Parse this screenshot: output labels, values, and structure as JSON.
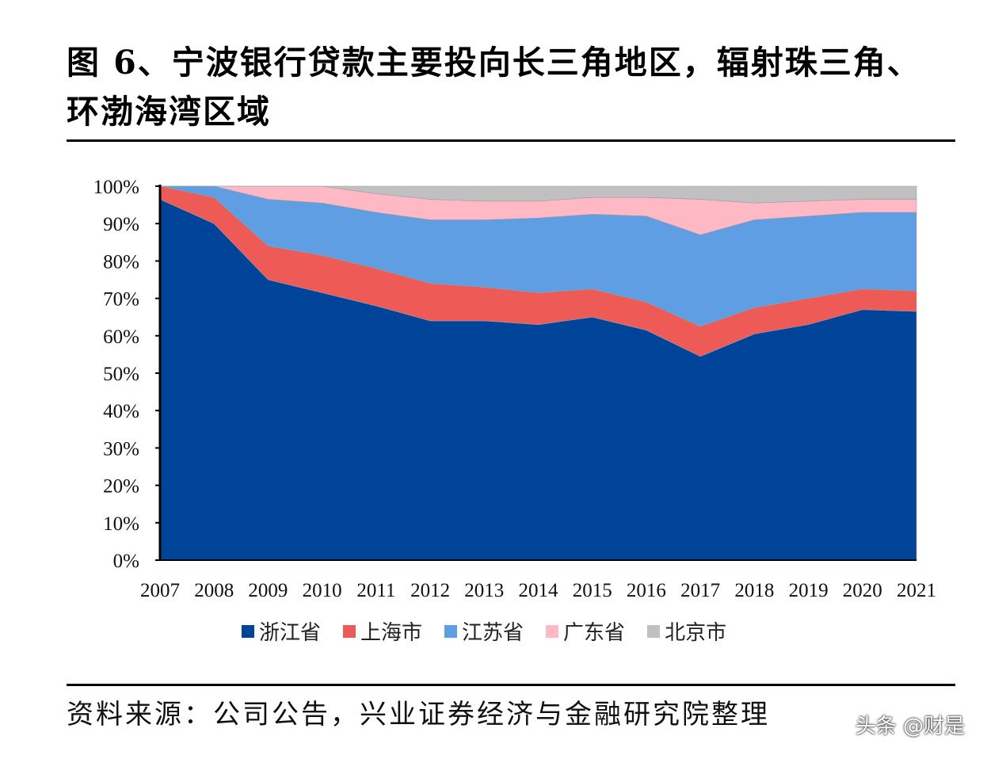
{
  "title": "图 6、宁波银行贷款主要投向长三角地区，辐射珠三角、环渤海湾区域",
  "source": "资料来源：公司公告，兴业证券经济与金融研究院整理",
  "watermark": "头条 @财是",
  "chart_data": {
    "type": "area",
    "stacked": true,
    "title": "宁波银行贷款主要投向长三角地区，辐射珠三角、环渤海湾区域",
    "xlabel": "",
    "ylabel": "",
    "ylim": [
      0,
      100
    ],
    "y_ticks": [
      "0%",
      "10%",
      "20%",
      "30%",
      "40%",
      "50%",
      "60%",
      "70%",
      "80%",
      "90%",
      "100%"
    ],
    "categories": [
      "2007",
      "2008",
      "2009",
      "2010",
      "2011",
      "2012",
      "2013",
      "2014",
      "2015",
      "2016",
      "2017",
      "2018",
      "2019",
      "2020",
      "2021"
    ],
    "legend_position": "bottom",
    "series": [
      {
        "name": "浙江省",
        "color": "#00449a",
        "values": [
          96.5,
          90,
          75,
          71.5,
          68,
          64,
          64,
          63,
          65,
          61.5,
          54.5,
          60.5,
          63,
          67,
          66.5
        ]
      },
      {
        "name": "上海市",
        "color": "#ee5b56",
        "values": [
          3.5,
          7,
          9,
          10,
          10,
          10,
          9,
          8.5,
          7.5,
          7.5,
          8,
          7,
          7,
          5.5,
          5.5
        ]
      },
      {
        "name": "江苏省",
        "color": "#609ee4",
        "values": [
          0,
          3,
          12.5,
          14,
          15,
          17,
          18,
          20,
          20,
          23,
          24.5,
          23.5,
          22,
          20.5,
          21
        ]
      },
      {
        "name": "广东省",
        "color": "#ffb9c4",
        "values": [
          0,
          0,
          3.5,
          4.5,
          5,
          5.5,
          5,
          4.5,
          4.5,
          5,
          9.5,
          4.5,
          4,
          3.5,
          3.5
        ]
      },
      {
        "name": "北京市",
        "color": "#c0c0c0",
        "values": [
          0,
          0,
          0,
          0,
          2,
          3.5,
          4,
          4,
          3,
          3,
          3.5,
          4.5,
          4,
          3.5,
          3.5
        ]
      }
    ]
  }
}
